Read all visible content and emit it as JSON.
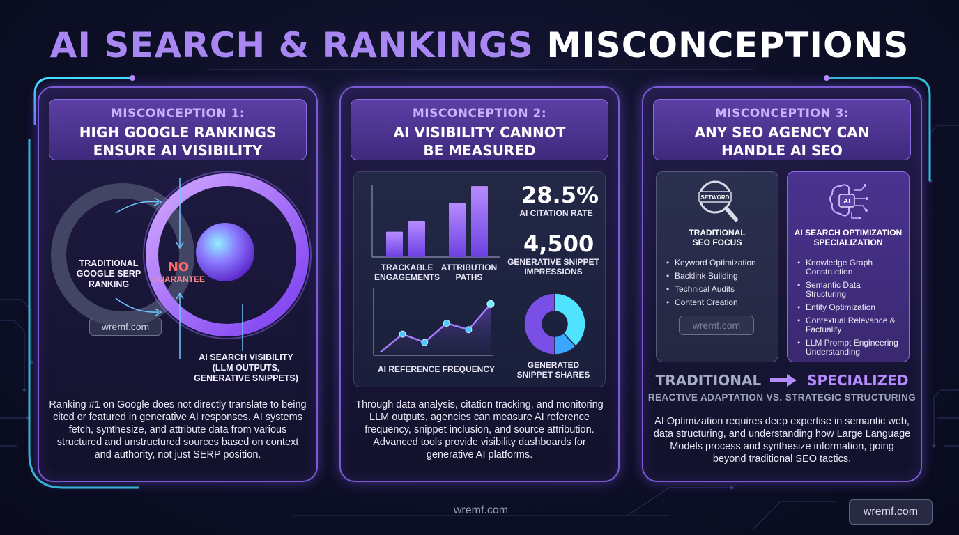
{
  "title": {
    "part1": "AI SEARCH & RANKINGS",
    "part2": "MISCONCEPTIONS"
  },
  "panels": [
    {
      "label": "MISCONCEPTION 1:",
      "heading_lines": [
        "HIGH GOOGLE RANKINGS",
        "ENSURE AI VISIBILITY"
      ],
      "diagram": {
        "left_label": [
          "TRADITIONAL",
          "GOOGLE SERP",
          "RANKING"
        ],
        "center_label": [
          "NO",
          "GUARANTEE"
        ],
        "right_label": [
          "AI SEARCH VISIBILITY",
          "(LLM OUTPUTS,",
          "GENERATIVE SNIPPETS)"
        ],
        "watermark": "wremf.com"
      },
      "body": "Ranking #1 on Google does not directly translate to being cited or featured in generative AI responses. AI systems fetch, synthesize, and attribute data from various structured and unstructured sources based on context and authority, not just SERP position."
    },
    {
      "label": "MISCONCEPTION 2:",
      "heading_lines": [
        "AI VISIBILITY CANNOT",
        "BE MEASURED"
      ],
      "stats": [
        {
          "value": "28.5%",
          "label": "AI CITATION RATE"
        },
        {
          "value": "4,500",
          "label": "GENERATIVE SNIPPET IMPRESSIONS"
        }
      ],
      "body": "Through data analysis, citation tracking, and monitoring LLM outputs, agencies can measure AI reference frequency, snippet inclusion, and source attribution. Advanced tools provide visibility dashboards for generative AI platforms."
    },
    {
      "label": "MISCONCEPTION 3:",
      "heading_lines": [
        "ANY SEO AGENCY CAN",
        "HANDLE AI SEO"
      ],
      "cards": [
        {
          "icon_text": "SETWORD",
          "title_lines": [
            "TRADITIONAL",
            "SEO FOCUS"
          ],
          "items": [
            "Keyword Optimization",
            "Backlink Building",
            "Technical Audits",
            "Content Creation"
          ],
          "watermark": "wremf.com"
        },
        {
          "icon_text": "AI",
          "title_lines": [
            "AI SEARCH OPTIMIZATION",
            "SPECIALIZATION"
          ],
          "items": [
            "Knowledge Graph Construction",
            "Semantic Data Structuring",
            "Entity Optimization",
            "Contextual Relevance & Factuality",
            "LLM Prompt Engineering Understanding"
          ]
        }
      ],
      "compare": {
        "from": "TRADITIONAL",
        "to": "SPECIALIZED",
        "subtitle": "REACTIVE ADAPTATION VS. STRATEGIC STRUCTURING"
      },
      "body": "AI Optimization requires deep expertise in semantic web, data structuring, and understanding how Large Language Models process and synthesize information, going beyond traditional SEO tactics."
    }
  ],
  "chart_data": [
    {
      "type": "bar",
      "categories": [
        "TRACKABLE ENGAGEMENTS",
        "ATTRIBUTION PATHS"
      ],
      "series": [
        {
          "values": [
            0.35,
            0.75
          ]
        },
        {
          "values": [
            0.5,
            0.98
          ]
        }
      ],
      "ylim": [
        0,
        1
      ]
    },
    {
      "type": "area",
      "title": "AI REFERENCE FREQUENCY",
      "x": [
        1,
        2,
        3,
        4,
        5,
        6
      ],
      "values": [
        0.05,
        0.33,
        0.2,
        0.5,
        0.4,
        0.8
      ],
      "ylim": [
        0,
        1
      ]
    },
    {
      "type": "pie",
      "title": "GENERATED SNIPPET SHARES",
      "values": [
        38,
        12,
        50
      ]
    }
  ],
  "footer": {
    "watermark": "wremf.com",
    "corner_watermark": "wremf.com"
  },
  "colors": {
    "accent_purple": "#a987f3",
    "cyan": "#38d9f5",
    "panel_border": "#7c5bd6"
  }
}
